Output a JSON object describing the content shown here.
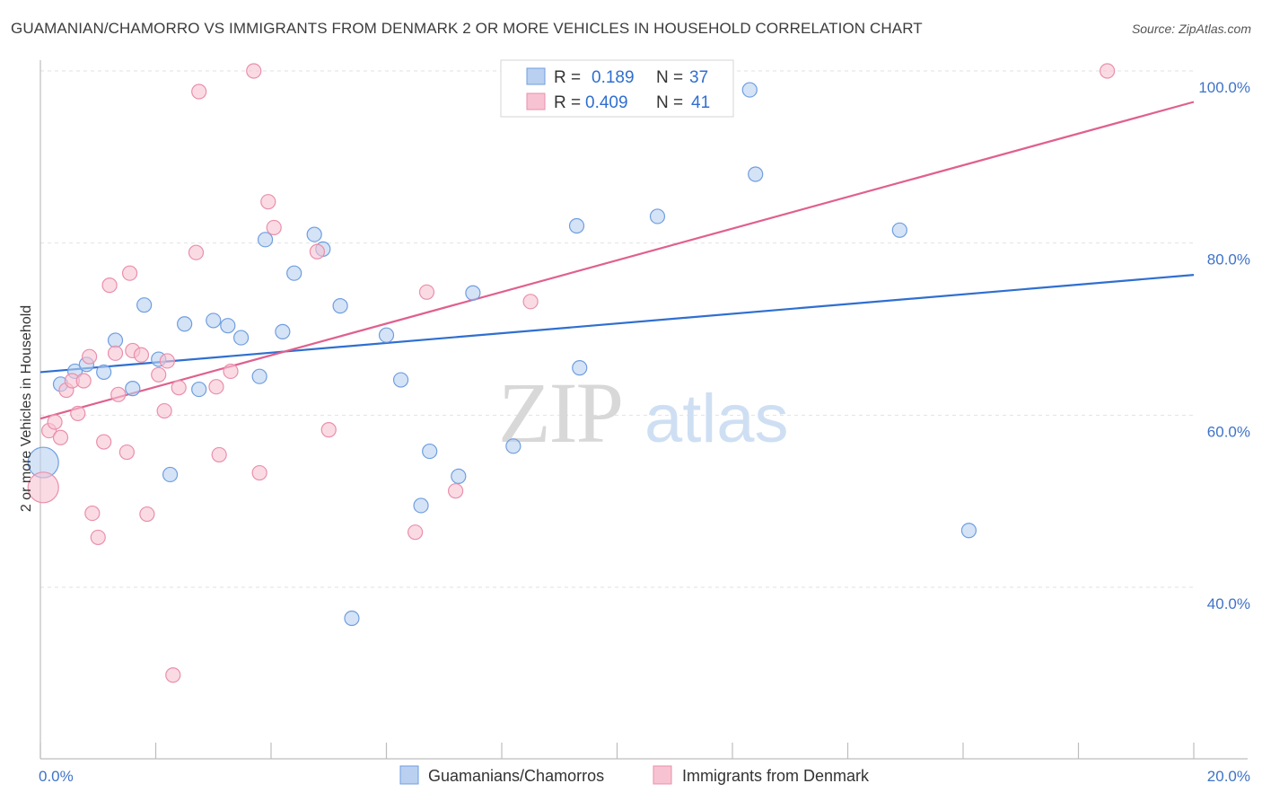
{
  "title": "GUAMANIAN/CHAMORRO VS IMMIGRANTS FROM DENMARK 2 OR MORE VEHICLES IN HOUSEHOLD CORRELATION CHART",
  "source": "Source: ZipAtlas.com",
  "watermark": {
    "zip": "ZIP",
    "atlas": "atlas"
  },
  "colors": {
    "blue_fill": "#b9d0f0",
    "blue_stroke": "#6f9ee0",
    "blue_line": "#2f6fd0",
    "pink_fill": "#f7c3d2",
    "pink_stroke": "#ea8fab",
    "pink_line": "#e0608e",
    "grid": "#e2e2e2",
    "axis_text": "#3f73c8"
  },
  "legend": {
    "r_label": "R =",
    "n_label": "N =",
    "rows": [
      {
        "r": "0.189",
        "n": "37",
        "series": "blue"
      },
      {
        "r": "0.409",
        "n": "41",
        "series": "pink"
      }
    ]
  },
  "chart_data": {
    "type": "scatter",
    "title": "GUAMANIAN/CHAMORRO VS IMMIGRANTS FROM DENMARK 2 OR MORE VEHICLES IN HOUSEHOLD CORRELATION CHART",
    "xlabel": "",
    "ylabel": "2 or more Vehicles in Household",
    "xlim": [
      0,
      20
    ],
    "ylim": [
      20,
      100
    ],
    "x_tick_labels": [
      "0.0%",
      "20.0%"
    ],
    "y_ticks": [
      40,
      60,
      80,
      100
    ],
    "y_tick_labels": [
      "40.0%",
      "60.0%",
      "80.0%",
      "100.0%"
    ],
    "grid": true,
    "legend_position": "top-center",
    "series": [
      {
        "name": "Guamanians/Chamorros",
        "color": "#6f9ee0",
        "trend": {
          "x": [
            0,
            20
          ],
          "y": [
            65.0,
            76.3
          ]
        },
        "points": [
          {
            "x": 0.05,
            "y": 54.5,
            "big": true
          },
          {
            "x": 0.35,
            "y": 63.6
          },
          {
            "x": 0.6,
            "y": 65.1
          },
          {
            "x": 0.8,
            "y": 65.9
          },
          {
            "x": 1.1,
            "y": 65.0
          },
          {
            "x": 1.3,
            "y": 68.7
          },
          {
            "x": 1.6,
            "y": 63.1
          },
          {
            "x": 1.8,
            "y": 72.8
          },
          {
            "x": 2.05,
            "y": 66.5
          },
          {
            "x": 2.25,
            "y": 53.1
          },
          {
            "x": 2.5,
            "y": 70.6
          },
          {
            "x": 2.75,
            "y": 63.0
          },
          {
            "x": 3.0,
            "y": 71.0
          },
          {
            "x": 3.25,
            "y": 70.4
          },
          {
            "x": 3.48,
            "y": 69.0
          },
          {
            "x": 3.8,
            "y": 64.5
          },
          {
            "x": 3.9,
            "y": 80.4
          },
          {
            "x": 4.4,
            "y": 76.5
          },
          {
            "x": 4.2,
            "y": 69.7
          },
          {
            "x": 4.75,
            "y": 81.0
          },
          {
            "x": 4.9,
            "y": 79.3
          },
          {
            "x": 5.2,
            "y": 72.7
          },
          {
            "x": 5.4,
            "y": 36.4
          },
          {
            "x": 6.0,
            "y": 69.3
          },
          {
            "x": 6.25,
            "y": 64.1
          },
          {
            "x": 6.6,
            "y": 49.5
          },
          {
            "x": 6.75,
            "y": 55.8
          },
          {
            "x": 7.25,
            "y": 52.9
          },
          {
            "x": 7.5,
            "y": 74.2
          },
          {
            "x": 8.2,
            "y": 56.4
          },
          {
            "x": 9.3,
            "y": 82.0
          },
          {
            "x": 9.35,
            "y": 65.5
          },
          {
            "x": 10.7,
            "y": 83.1
          },
          {
            "x": 12.3,
            "y": 97.8
          },
          {
            "x": 12.4,
            "y": 88.0
          },
          {
            "x": 14.9,
            "y": 81.5
          },
          {
            "x": 16.1,
            "y": 46.6
          }
        ]
      },
      {
        "name": "Immigrants from Denmark",
        "color": "#ea8fab",
        "trend": {
          "x": [
            0,
            20
          ],
          "y": [
            59.6,
            96.4
          ]
        },
        "points": [
          {
            "x": 0.05,
            "y": 51.6,
            "big": true
          },
          {
            "x": 0.15,
            "y": 58.2
          },
          {
            "x": 0.25,
            "y": 59.2
          },
          {
            "x": 0.35,
            "y": 57.4
          },
          {
            "x": 0.45,
            "y": 62.9
          },
          {
            "x": 0.55,
            "y": 64.0
          },
          {
            "x": 0.65,
            "y": 60.2
          },
          {
            "x": 0.75,
            "y": 64.0
          },
          {
            "x": 0.85,
            "y": 66.8
          },
          {
            "x": 0.9,
            "y": 48.6
          },
          {
            "x": 1.0,
            "y": 45.8
          },
          {
            "x": 1.1,
            "y": 56.9
          },
          {
            "x": 1.2,
            "y": 75.1
          },
          {
            "x": 1.3,
            "y": 67.2
          },
          {
            "x": 1.35,
            "y": 62.4
          },
          {
            "x": 1.5,
            "y": 55.7
          },
          {
            "x": 1.55,
            "y": 76.5
          },
          {
            "x": 1.6,
            "y": 67.5
          },
          {
            "x": 1.75,
            "y": 67.0
          },
          {
            "x": 1.85,
            "y": 48.5
          },
          {
            "x": 2.05,
            "y": 64.7
          },
          {
            "x": 2.15,
            "y": 60.5
          },
          {
            "x": 2.2,
            "y": 66.3
          },
          {
            "x": 2.3,
            "y": 29.8
          },
          {
            "x": 2.4,
            "y": 63.2
          },
          {
            "x": 2.7,
            "y": 78.9
          },
          {
            "x": 2.75,
            "y": 97.6
          },
          {
            "x": 3.05,
            "y": 63.3
          },
          {
            "x": 3.1,
            "y": 55.4
          },
          {
            "x": 3.3,
            "y": 65.1
          },
          {
            "x": 3.7,
            "y": 100.0
          },
          {
            "x": 3.8,
            "y": 53.3
          },
          {
            "x": 3.95,
            "y": 84.8
          },
          {
            "x": 4.05,
            "y": 81.8
          },
          {
            "x": 4.8,
            "y": 79.0
          },
          {
            "x": 5.0,
            "y": 58.3
          },
          {
            "x": 6.5,
            "y": 46.4
          },
          {
            "x": 6.7,
            "y": 74.3
          },
          {
            "x": 7.2,
            "y": 51.2
          },
          {
            "x": 8.5,
            "y": 73.2
          },
          {
            "x": 18.5,
            "y": 100.0
          }
        ]
      }
    ]
  }
}
